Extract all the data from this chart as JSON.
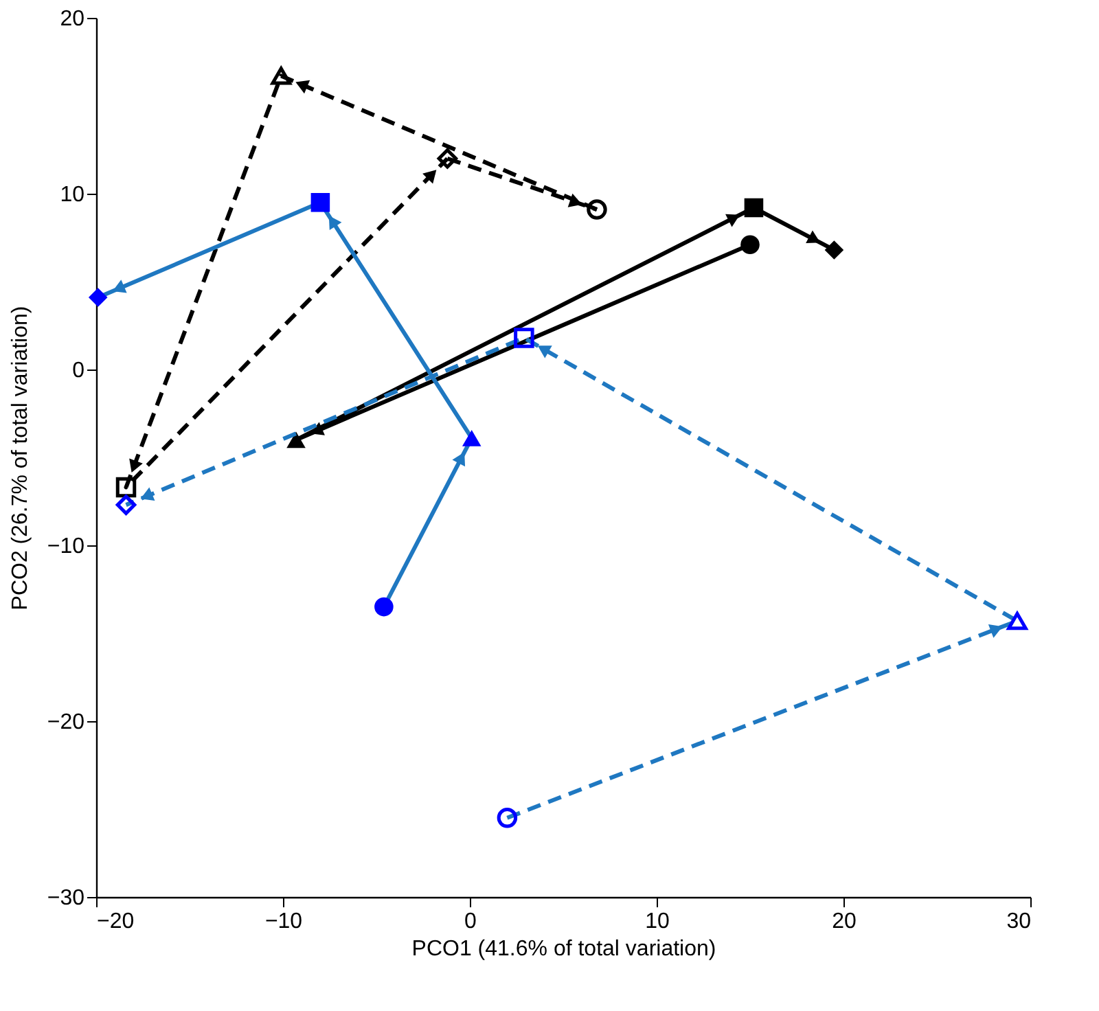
{
  "chart_data": {
    "type": "line",
    "xlabel": "PCO1 (41.6% of total variation)",
    "ylabel": "PCO2 (26.7% of total variation)",
    "xlim": [
      -20,
      30
    ],
    "ylim": [
      -30,
      20
    ],
    "xticks": [
      -20,
      -10,
      0,
      10,
      20,
      30
    ],
    "yticks": [
      -30,
      -20,
      -10,
      0,
      10,
      20
    ],
    "grid": false,
    "series": [
      {
        "color": "#000000",
        "line_style": "solid",
        "marker": [
          "circle",
          "triangle",
          "square",
          "diamond"
        ],
        "x": [
          15.0,
          -9.3,
          15.2,
          19.5
        ],
        "values": [
          7.1,
          -4.0,
          9.2,
          6.8
        ]
      },
      {
        "color": "#000000",
        "line_style": "dashed",
        "marker": [
          "circle",
          "triangle",
          "square",
          "diamond"
        ],
        "x": [
          6.8,
          -10.1,
          -18.4,
          -1.2
        ],
        "values": [
          9.1,
          16.7,
          -6.7,
          12.0
        ]
      },
      {
        "color": "#000000",
        "line_style": "dashed",
        "marker": "none",
        "x": [
          -1.2,
          6.8
        ],
        "values": [
          12.0,
          9.1
        ]
      },
      {
        "color": "#1f78c1",
        "line_style": "solid",
        "marker": [
          "circle",
          "triangle",
          "square",
          "diamond"
        ],
        "x": [
          -4.6,
          0.1,
          -8.0,
          -19.9
        ],
        "values": [
          -13.5,
          -3.9,
          9.5,
          4.1
        ]
      },
      {
        "color": "#1f78c1",
        "line_style": "dashed",
        "marker": [
          "circle",
          "triangle",
          "square",
          "diamond"
        ],
        "x": [
          2.0,
          29.3,
          2.9,
          -18.4
        ],
        "values": [
          -25.5,
          -14.3,
          1.8,
          -7.7
        ]
      }
    ]
  }
}
